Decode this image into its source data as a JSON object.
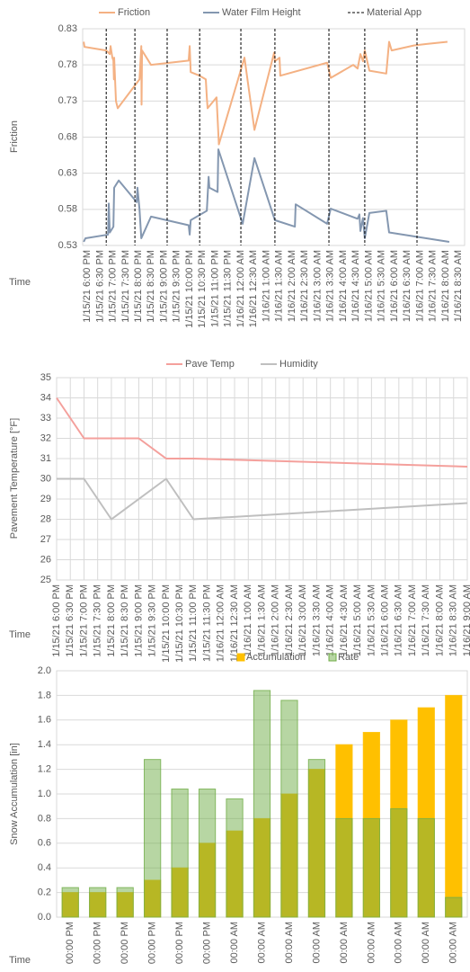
{
  "chart_data": [
    {
      "type": "line",
      "ylabel": "Friction",
      "xlabel": "Time",
      "grid": true,
      "xlim": [
        -0.18,
        14.74
      ],
      "ylim": [
        0.53,
        0.83
      ],
      "yticks": [
        0.53,
        0.58,
        0.63,
        0.68,
        0.73,
        0.78,
        0.83
      ],
      "xticks": [
        {
          "value": 0,
          "label": "1/15/21 6:00 PM"
        },
        {
          "value": 0.5,
          "label": "1/15/21 6:30 PM"
        },
        {
          "value": 1,
          "label": "1/15/21 7:00 PM"
        },
        {
          "value": 1.5,
          "label": "1/15/21 7:30 PM"
        },
        {
          "value": 2,
          "label": "1/15/21 8:00 PM"
        },
        {
          "value": 2.5,
          "label": "1/15/21 8:30 PM"
        },
        {
          "value": 3,
          "label": "1/15/21 9:00 PM"
        },
        {
          "value": 3.5,
          "label": "1/15/21 9:30 PM"
        },
        {
          "value": 4,
          "label": "1/15/21 10:00 PM"
        },
        {
          "value": 4.5,
          "label": "1/15/21 10:30 PM"
        },
        {
          "value": 5,
          "label": "1/15/21 11:00 PM"
        },
        {
          "value": 5.5,
          "label": "1/15/21 11:30 PM"
        },
        {
          "value": 6,
          "label": "1/16/21 12:00 AM"
        },
        {
          "value": 6.5,
          "label": "1/16/21 12:30 AM"
        },
        {
          "value": 7,
          "label": "1/16/21 1:00 AM"
        },
        {
          "value": 7.5,
          "label": "1/16/21 1:30 AM"
        },
        {
          "value": 8,
          "label": "1/16/21 2:00 AM"
        },
        {
          "value": 8.5,
          "label": "1/16/21 2:30 AM"
        },
        {
          "value": 9,
          "label": "1/16/21 3:00 AM"
        },
        {
          "value": 9.5,
          "label": "1/16/21 3:30 AM"
        },
        {
          "value": 10,
          "label": "1/16/21 4:00 AM"
        },
        {
          "value": 10.5,
          "label": "1/16/21 4:30 AM"
        },
        {
          "value": 11,
          "label": "1/16/21 5:00 AM"
        },
        {
          "value": 11.5,
          "label": "1/16/21 5:30 AM"
        },
        {
          "value": 12,
          "label": "1/16/21 6:00 AM"
        },
        {
          "value": 12.5,
          "label": "1/16/21 6:30 AM"
        },
        {
          "value": 13,
          "label": "1/16/21 7:00 AM"
        },
        {
          "value": 13.5,
          "label": "1/16/21 7:30 AM"
        },
        {
          "value": 14,
          "label": "1/16/21 8:00 AM"
        },
        {
          "value": 14.5,
          "label": "1/16/21 8:30 AM"
        }
      ],
      "series": [
        {
          "name": "Friction",
          "color": "#f4b183",
          "x": [
            -0.14,
            -0.11,
            0.74,
            0.88,
            0.91,
            0.98,
            1.02,
            1.04,
            1.05,
            1.12,
            1.19,
            2.04,
            2.11,
            2.12,
            2.14,
            2.49,
            3.96,
            4.0,
            4.04,
            4.39,
            4.63,
            4.67,
            4.7,
            5.05,
            5.14,
            6.14,
            6.53,
            7.3,
            7.33,
            7.51,
            7.54,
            9.37,
            9.51,
            10.39,
            10.56,
            10.67,
            10.77,
            10.84,
            11.02,
            11.68,
            11.79,
            11.89,
            12.77,
            13.26,
            14.07
          ],
          "values": [
            0.812,
            0.805,
            0.8,
            0.795,
            0.806,
            0.79,
            0.786,
            0.76,
            0.79,
            0.73,
            0.72,
            0.76,
            0.806,
            0.725,
            0.8,
            0.78,
            0.786,
            0.806,
            0.77,
            0.765,
            0.76,
            0.735,
            0.72,
            0.735,
            0.67,
            0.79,
            0.69,
            0.797,
            0.785,
            0.79,
            0.765,
            0.783,
            0.762,
            0.78,
            0.775,
            0.795,
            0.785,
            0.8,
            0.772,
            0.768,
            0.812,
            0.8,
            0.807,
            0.809,
            0.812
          ]
        },
        {
          "name": "Water Film Height",
          "color": "#8497b0",
          "x": [
            -0.14,
            -0.07,
            0.81,
            0.84,
            0.88,
            1.02,
            1.05,
            1.23,
            1.93,
            1.96,
            2.04,
            2.11,
            2.49,
            3.96,
            4.0,
            4.04,
            4.67,
            4.74,
            4.77,
            5.09,
            5.12,
            6.07,
            6.53,
            7.33,
            8.11,
            8.14,
            9.37,
            9.51,
            10.56,
            10.63,
            10.67,
            10.77,
            10.84,
            11.02,
            11.68,
            11.79,
            14.14
          ],
          "values": [
            0.535,
            0.54,
            0.545,
            0.588,
            0.548,
            0.556,
            0.61,
            0.62,
            0.59,
            0.61,
            0.58,
            0.54,
            0.57,
            0.558,
            0.545,
            0.565,
            0.578,
            0.625,
            0.61,
            0.604,
            0.663,
            0.56,
            0.651,
            0.565,
            0.556,
            0.587,
            0.56,
            0.581,
            0.567,
            0.573,
            0.55,
            0.568,
            0.54,
            0.575,
            0.578,
            0.548,
            0.535
          ]
        }
      ],
      "events": {
        "name": "Material App",
        "color": "#000000",
        "x": [
          0.74,
          1.86,
          3.12,
          4.39,
          6.0,
          7.33,
          9.44,
          10.84,
          12.88
        ]
      }
    },
    {
      "type": "line",
      "ylabel": "Pavement Temperature [°F]",
      "xlabel": "Time",
      "grid": true,
      "xgrid": true,
      "xlim": [
        0,
        15
      ],
      "ylim": [
        25,
        35
      ],
      "yticks": [
        25,
        26,
        27,
        28,
        29,
        30,
        31,
        32,
        33,
        34,
        35
      ],
      "xticks": [
        {
          "value": 0,
          "label": "1/15/21 6:00 PM"
        },
        {
          "value": 0.5,
          "label": "1/15/21 6:30 PM"
        },
        {
          "value": 1,
          "label": "1/15/21 7:00 PM"
        },
        {
          "value": 1.5,
          "label": "1/15/21 7:30 PM"
        },
        {
          "value": 2,
          "label": "1/15/21 8:00 PM"
        },
        {
          "value": 2.5,
          "label": "1/15/21 8:30 PM"
        },
        {
          "value": 3,
          "label": "1/15/21 9:00 PM"
        },
        {
          "value": 3.5,
          "label": "1/15/21 9:30 PM"
        },
        {
          "value": 4,
          "label": "1/15/21 10:00 PM"
        },
        {
          "value": 4.5,
          "label": "1/15/21 10:30 PM"
        },
        {
          "value": 5,
          "label": "1/15/21 11:00 PM"
        },
        {
          "value": 5.5,
          "label": "1/15/21 11:30 PM"
        },
        {
          "value": 6,
          "label": "1/16/21 12:00 AM"
        },
        {
          "value": 6.5,
          "label": "1/16/21 12:30 AM"
        },
        {
          "value": 7,
          "label": "1/16/21 1:00 AM"
        },
        {
          "value": 7.5,
          "label": "1/16/21 1:30 AM"
        },
        {
          "value": 8,
          "label": "1/16/21 2:00 AM"
        },
        {
          "value": 8.5,
          "label": "1/16/21 2:30 AM"
        },
        {
          "value": 9,
          "label": "1/16/21 3:00 AM"
        },
        {
          "value": 9.5,
          "label": "1/16/21 3:30 AM"
        },
        {
          "value": 10,
          "label": "1/16/21 4:00 AM"
        },
        {
          "value": 10.5,
          "label": "1/16/21 4:30 AM"
        },
        {
          "value": 11,
          "label": "1/16/21 5:00 AM"
        },
        {
          "value": 11.5,
          "label": "1/16/21 5:30 AM"
        },
        {
          "value": 12,
          "label": "1/16/21 6:00 AM"
        },
        {
          "value": 12.5,
          "label": "1/16/21 6:30 AM"
        },
        {
          "value": 13,
          "label": "1/16/21 7:00 AM"
        },
        {
          "value": 13.5,
          "label": "1/16/21 7:30 AM"
        },
        {
          "value": 14,
          "label": "1/16/21 8:00 AM"
        },
        {
          "value": 14.5,
          "label": "1/16/21 8:30 AM"
        },
        {
          "value": 15,
          "label": "1/16/21 9:00 AM"
        }
      ],
      "series": [
        {
          "name": "Pave Temp",
          "color": "#f4a09c",
          "x": [
            0,
            1,
            3,
            4,
            5,
            15
          ],
          "values": [
            34,
            32,
            32,
            31,
            31,
            30.6
          ]
        },
        {
          "name": "Humidity",
          "color": "#bfbfbf",
          "x": [
            0,
            1,
            2,
            4,
            5,
            15
          ],
          "values": [
            30,
            30,
            28,
            30,
            28,
            28.8
          ]
        }
      ]
    },
    {
      "type": "bar",
      "ylabel": "Snow Accumulation [in]",
      "xlabel": "Time",
      "grid": true,
      "ylim": [
        0,
        2
      ],
      "yticks": [
        {
          "value": 0,
          "label": "0.0"
        },
        0.2,
        0.4,
        0.6,
        0.8,
        {
          "value": 1,
          "label": "1.0"
        },
        1.2,
        1.4,
        1.6,
        1.8,
        {
          "value": 2,
          "label": "2.0"
        }
      ],
      "categories": [
        "00:00 PM",
        "00:00 PM",
        "00:00 PM",
        "00:00 PM",
        "00:00 PM",
        "00:00 PM",
        "00:00 AM",
        "00:00 AM",
        "00:00 AM",
        "00:00 AM",
        "00:00 AM",
        "00:00 AM",
        "00:00 AM",
        "00:00 AM",
        "00:00 AM"
      ],
      "series": [
        {
          "name": "Accumulation",
          "color": "#ffc000",
          "values": [
            0.2,
            0.2,
            0.2,
            0.3,
            0.4,
            0.6,
            0.7,
            0.8,
            1.0,
            1.2,
            1.4,
            1.5,
            1.6,
            1.7,
            1.8
          ]
        },
        {
          "name": "Rate",
          "color": "#70ad47",
          "values": [
            0.24,
            0.24,
            0.24,
            1.28,
            1.04,
            1.04,
            0.96,
            1.84,
            1.76,
            1.28,
            0.8,
            0.8,
            0.88,
            0.8,
            0.16
          ]
        }
      ]
    }
  ]
}
